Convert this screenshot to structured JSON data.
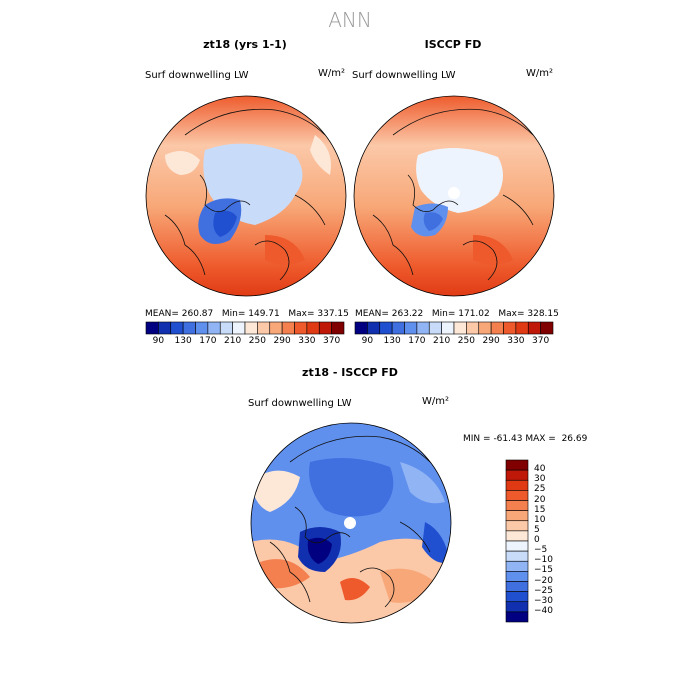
{
  "title": "ANN",
  "panels": [
    {
      "title": "zt18 (yrs 1-1)",
      "variable": "Surf downwelling LW",
      "units": "W/m²",
      "stats": {
        "mean_label": "MEAN=",
        "mean": "260.87",
        "min_label": "Min=",
        "min": "149.71",
        "max_label": "Max=",
        "max": "337.15"
      }
    },
    {
      "title": "ISCCP FD",
      "variable": "Surf downwelling LW",
      "units": "W/m²",
      "stats": {
        "mean_label": "MEAN=",
        "mean": "263.22",
        "min_label": "Min=",
        "min": "171.02",
        "max_label": "Max=",
        "max": "328.15"
      }
    }
  ],
  "abs_colorbar": {
    "ticks": [
      "90",
      "130",
      "170",
      "210",
      "250",
      "290",
      "330",
      "370"
    ],
    "colors": [
      "#000080",
      "#1030b0",
      "#2050d0",
      "#4070e0",
      "#6090ee",
      "#90b4f4",
      "#c8dcfa",
      "#eef4fd",
      "#fde8d8",
      "#fbc8a8",
      "#f8a878",
      "#f48050",
      "#ee5a2c",
      "#e03a14",
      "#c01808",
      "#800000"
    ]
  },
  "diff": {
    "title": "zt18 - ISCCP FD",
    "variable": "Surf downwelling LW",
    "units": "W/m²",
    "stats": {
      "min_label": "MIN =",
      "min": "-61.43",
      "max_label": "MAX =",
      "max": "26.69"
    },
    "colorbar": {
      "labels": [
        "40",
        "30",
        "25",
        "20",
        "15",
        "10",
        "5",
        "0",
        "−5",
        "−10",
        "−15",
        "−20",
        "−25",
        "−30",
        "−40"
      ],
      "colors": [
        "#800000",
        "#c01808",
        "#e03a14",
        "#ee5a2c",
        "#f48050",
        "#f8a878",
        "#fbc8a8",
        "#fde8d8",
        "#eef4fd",
        "#c8dcfa",
        "#90b4f4",
        "#6090ee",
        "#4070e0",
        "#2050d0",
        "#1030b0",
        "#000080"
      ]
    }
  }
}
